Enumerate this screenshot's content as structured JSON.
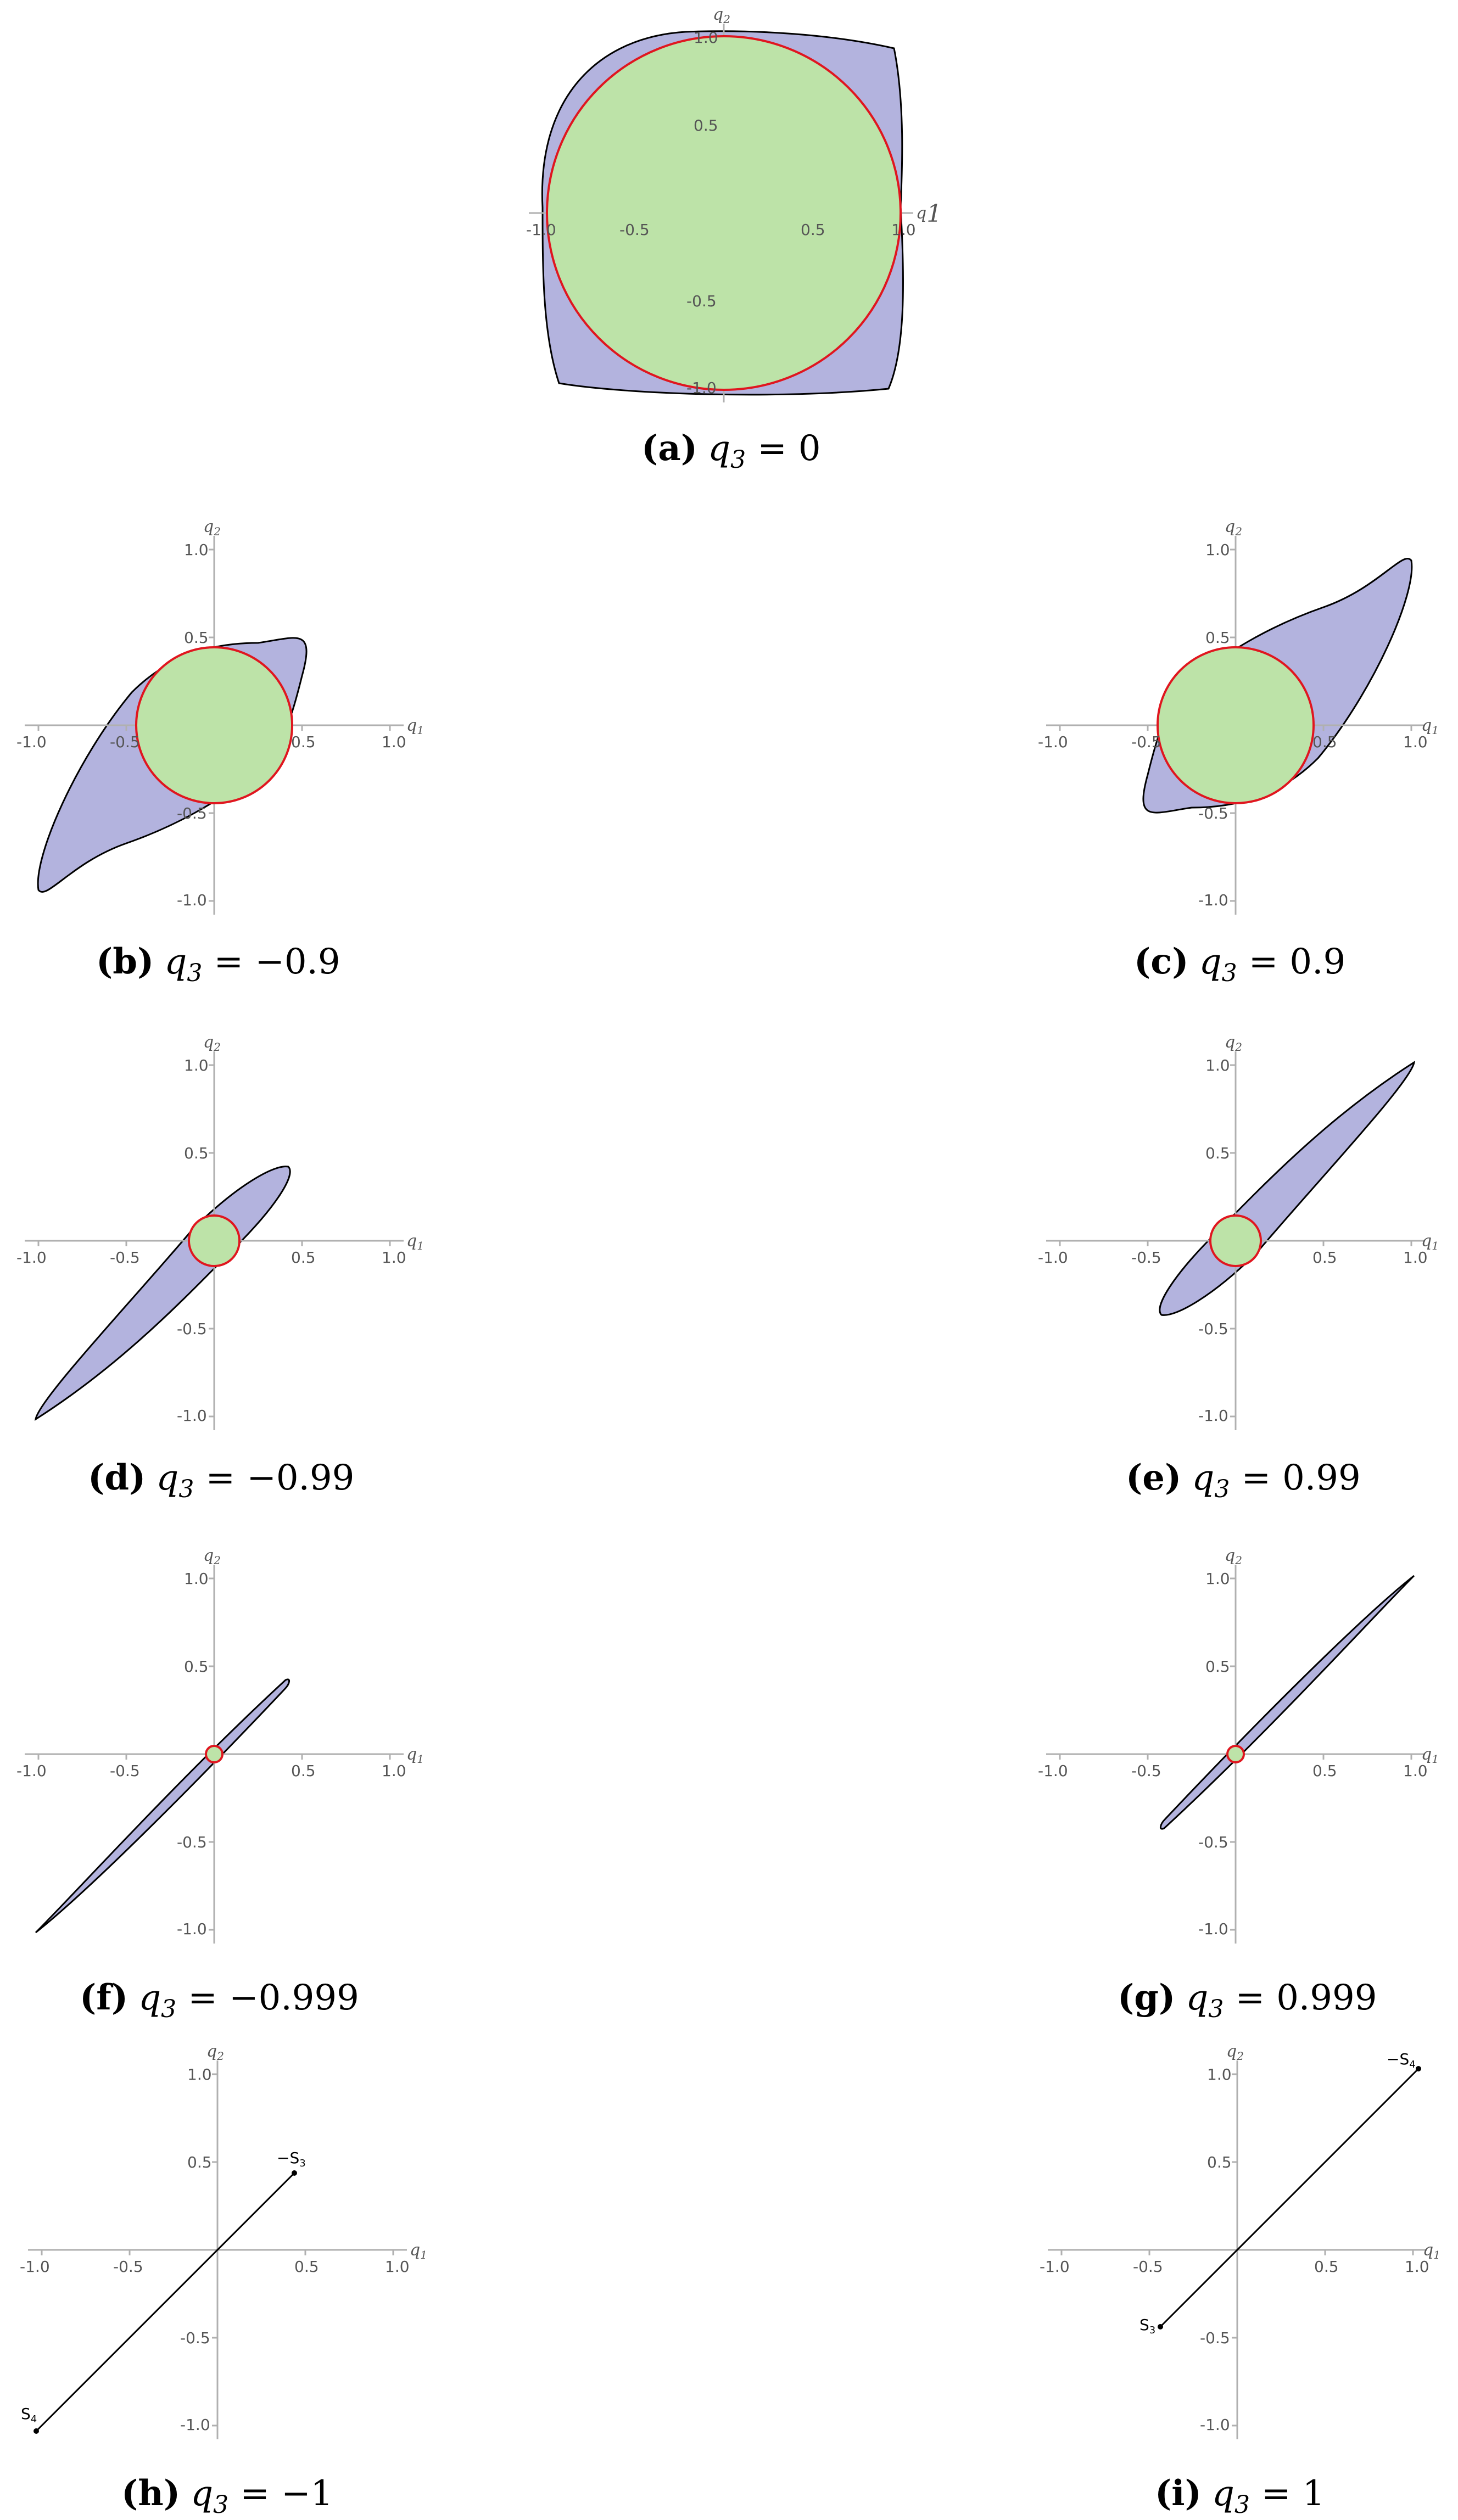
{
  "axes": {
    "x_name": "q",
    "x_sub": "1",
    "y_name": "q",
    "y_sub": "2",
    "tick_labels": [
      "-1.0",
      "-0.5",
      "0.5",
      "1.0"
    ]
  },
  "colors": {
    "region_fill": "#b3b3de",
    "region_stroke": "#000000",
    "disk_fill": "#bde3a8",
    "disk_stroke": "#e0161f",
    "axis": "#b0b0b0"
  },
  "panels": [
    {
      "id": "a",
      "label": "(a)",
      "q3_text": "0",
      "q3": 0
    },
    {
      "id": "b",
      "label": "(b)",
      "q3_text": "−0.9",
      "q3": -0.9
    },
    {
      "id": "c",
      "label": "(c)",
      "q3_text": "0.9",
      "q3": 0.9
    },
    {
      "id": "d",
      "label": "(d)",
      "q3_text": "−0.99",
      "q3": -0.99
    },
    {
      "id": "e",
      "label": "(e)",
      "q3_text": "0.99",
      "q3": 0.99
    },
    {
      "id": "f",
      "label": "(f)",
      "q3_text": "−0.999",
      "q3": -0.999
    },
    {
      "id": "g",
      "label": "(g)",
      "q3_text": "0.999",
      "q3": 0.999
    },
    {
      "id": "h",
      "label": "(h)",
      "q3_text": "−1",
      "q3": -1
    },
    {
      "id": "i",
      "label": "(i)",
      "q3_text": "1",
      "q3": 1
    }
  ],
  "point_labels": {
    "h": {
      "upper": "−S",
      "upper_sub": "3",
      "lower": "S",
      "lower_sub": "4"
    },
    "i": {
      "upper": "−S",
      "upper_sub": "4",
      "lower": "S",
      "lower_sub": "3"
    }
  },
  "caption_eq": {
    "name": "q",
    "sub": "3",
    "op": "="
  }
}
